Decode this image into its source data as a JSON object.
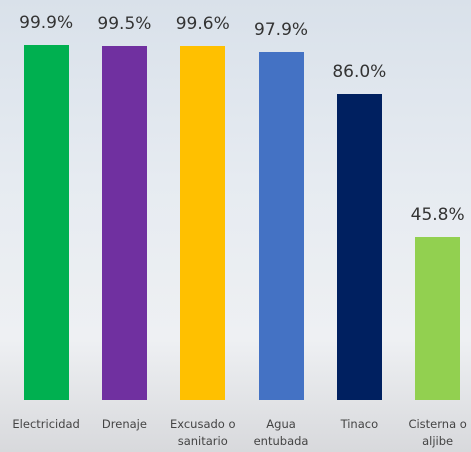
{
  "chart_data": {
    "type": "bar",
    "categories": [
      "Electricidad",
      "Drenaje",
      "Excusado o sanitario",
      "Agua entubada",
      "Tinaco",
      "Cisterna o aljibe"
    ],
    "values": [
      99.9,
      99.5,
      99.6,
      97.9,
      86.0,
      45.8
    ],
    "value_labels": [
      "99.9%",
      "99.5%",
      "99.6%",
      "97.9%",
      "86.0%",
      "45.8%"
    ],
    "colors": [
      "#00b050",
      "#7030a0",
      "#ffc000",
      "#4472c4",
      "#002060",
      "#92d050"
    ],
    "ylim": [
      0,
      100
    ]
  }
}
